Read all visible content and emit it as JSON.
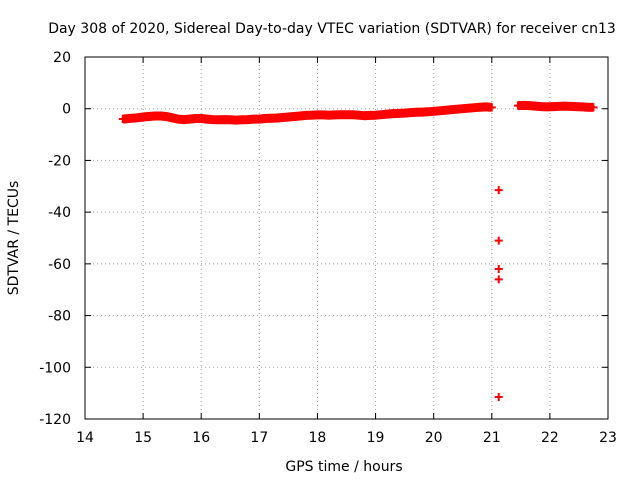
{
  "chart_data": {
    "type": "scatter",
    "title": "Day 308 of 2020, Sidereal Day-to-day VTEC variation (SDTVAR) for receiver cn13",
    "xlabel": "GPS time / hours",
    "ylabel": "SDTVAR / TECUs",
    "xlim": [
      14,
      23
    ],
    "ylim": [
      -120,
      20
    ],
    "xticks": [
      "14",
      "15",
      "16",
      "17",
      "18",
      "19",
      "20",
      "21",
      "22",
      "23"
    ],
    "yticks": [
      "20",
      "0",
      "-20",
      "-40",
      "-60",
      "-80",
      "-100",
      "-120"
    ],
    "grid": true,
    "marker_color": "#ff0000",
    "series": [
      {
        "name": "SDTVAR",
        "points": [
          [
            14.65,
            -4.0
          ],
          [
            14.75,
            -3.8
          ],
          [
            14.9,
            -3.5
          ],
          [
            15.0,
            -3.2
          ],
          [
            15.1,
            -3.0
          ],
          [
            15.2,
            -2.8
          ],
          [
            15.3,
            -2.8
          ],
          [
            15.4,
            -3.0
          ],
          [
            15.5,
            -3.5
          ],
          [
            15.6,
            -4.0
          ],
          [
            15.7,
            -4.2
          ],
          [
            15.8,
            -4.0
          ],
          [
            15.9,
            -3.8
          ],
          [
            16.0,
            -3.8
          ],
          [
            16.1,
            -4.0
          ],
          [
            16.2,
            -4.2
          ],
          [
            16.3,
            -4.3
          ],
          [
            16.4,
            -4.2
          ],
          [
            16.5,
            -4.3
          ],
          [
            16.6,
            -4.4
          ],
          [
            16.7,
            -4.3
          ],
          [
            16.8,
            -4.2
          ],
          [
            16.9,
            -4.0
          ],
          [
            17.0,
            -4.0
          ],
          [
            17.1,
            -3.8
          ],
          [
            17.2,
            -3.7
          ],
          [
            17.3,
            -3.6
          ],
          [
            17.4,
            -3.4
          ],
          [
            17.5,
            -3.2
          ],
          [
            17.6,
            -3.0
          ],
          [
            17.7,
            -2.8
          ],
          [
            17.8,
            -2.6
          ],
          [
            17.9,
            -2.5
          ],
          [
            18.0,
            -2.4
          ],
          [
            18.1,
            -2.4
          ],
          [
            18.2,
            -2.5
          ],
          [
            18.3,
            -2.4
          ],
          [
            18.4,
            -2.3
          ],
          [
            18.5,
            -2.3
          ],
          [
            18.6,
            -2.3
          ],
          [
            18.7,
            -2.5
          ],
          [
            18.8,
            -2.7
          ],
          [
            18.9,
            -2.6
          ],
          [
            19.0,
            -2.5
          ],
          [
            19.1,
            -2.3
          ],
          [
            19.2,
            -2.1
          ],
          [
            19.3,
            -1.9
          ],
          [
            19.4,
            -1.8
          ],
          [
            19.5,
            -1.7
          ],
          [
            19.6,
            -1.5
          ],
          [
            19.7,
            -1.4
          ],
          [
            19.8,
            -1.3
          ],
          [
            19.9,
            -1.2
          ],
          [
            20.0,
            -1.0
          ],
          [
            20.1,
            -0.8
          ],
          [
            20.2,
            -0.6
          ],
          [
            20.3,
            -0.4
          ],
          [
            20.4,
            -0.2
          ],
          [
            20.5,
            0.0
          ],
          [
            20.6,
            0.2
          ],
          [
            20.7,
            0.4
          ],
          [
            20.8,
            0.6
          ],
          [
            20.9,
            0.7
          ],
          [
            21.0,
            0.5
          ],
          [
            21.45,
            1.2
          ],
          [
            21.55,
            1.3
          ],
          [
            21.65,
            1.2
          ],
          [
            21.75,
            1.0
          ],
          [
            21.85,
            0.8
          ],
          [
            21.95,
            0.7
          ],
          [
            22.05,
            0.8
          ],
          [
            22.15,
            0.9
          ],
          [
            22.25,
            1.0
          ],
          [
            22.35,
            0.9
          ],
          [
            22.45,
            0.8
          ],
          [
            22.55,
            0.7
          ],
          [
            22.65,
            0.6
          ],
          [
            22.75,
            0.5
          ],
          [
            21.12,
            -31.5
          ],
          [
            21.12,
            -51.0
          ],
          [
            21.12,
            -62.0
          ],
          [
            21.12,
            -66.0
          ],
          [
            21.12,
            -111.5
          ]
        ]
      }
    ]
  }
}
